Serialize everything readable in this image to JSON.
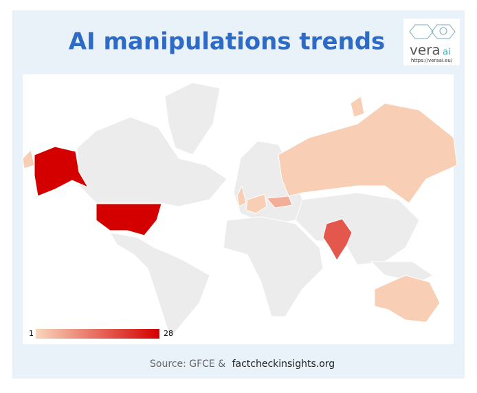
{
  "header": {
    "title": "AI manipulations trends"
  },
  "logo": {
    "name": "vera",
    "suffix": "ai",
    "url": "https://veraai.eu/"
  },
  "map": {
    "scale_min": 1,
    "scale_max": 28,
    "colors": [
      "#f9d6bc",
      "#d40000"
    ],
    "values": [
      28,
      17,
      6,
      2,
      2,
      2,
      2,
      2,
      2
    ]
  },
  "footer": {
    "source": "Source: GFCE &",
    "link": "factcheckinsights.org"
  }
}
